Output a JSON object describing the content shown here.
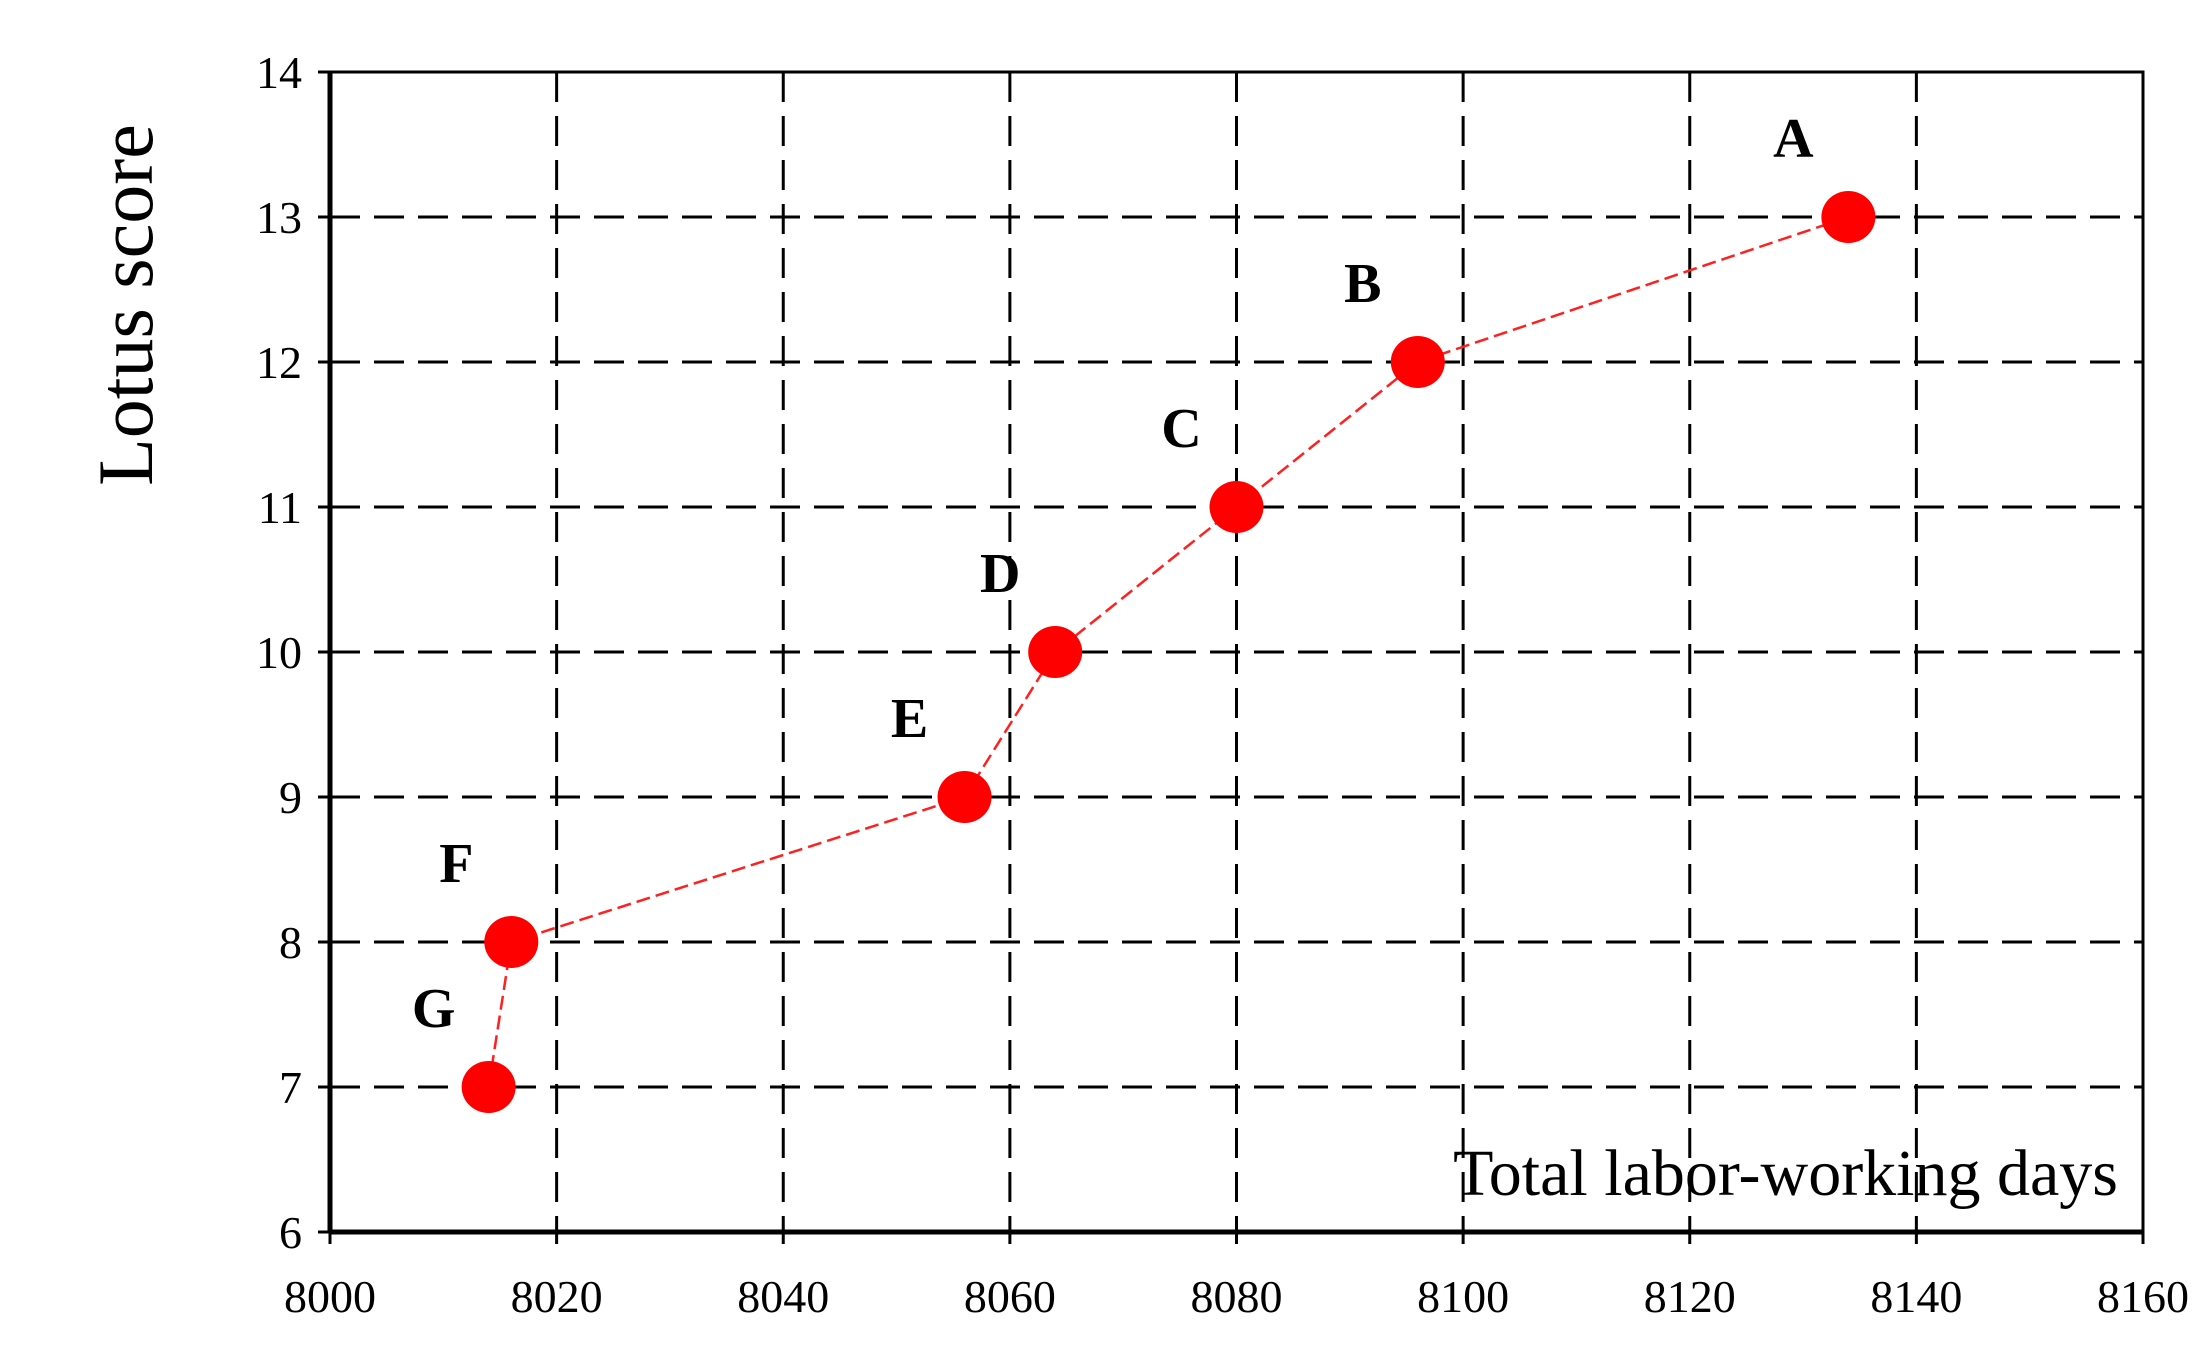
{
  "chart_data": {
    "type": "scatter",
    "title": "",
    "xlabel": "Total labor-working days",
    "ylabel": "Lotus score",
    "xlim": [
      8000,
      8160
    ],
    "ylim": [
      6,
      14
    ],
    "xticks": [
      8000,
      8020,
      8040,
      8060,
      8080,
      8100,
      8120,
      8140,
      8160
    ],
    "yticks": [
      6,
      7,
      8,
      9,
      10,
      11,
      12,
      13,
      14
    ],
    "grid": true,
    "legend": "none",
    "connected": true,
    "marker_color": "#ff0000",
    "line_color": "#ff2020",
    "points": [
      {
        "label": "A",
        "x": 8134,
        "y": 13
      },
      {
        "label": "B",
        "x": 8096,
        "y": 12
      },
      {
        "label": "C",
        "x": 8080,
        "y": 11
      },
      {
        "label": "D",
        "x": 8064,
        "y": 10
      },
      {
        "label": "E",
        "x": 8056,
        "y": 9
      },
      {
        "label": "F",
        "x": 8016,
        "y": 8
      },
      {
        "label": "G",
        "x": 8014,
        "y": 7
      }
    ]
  }
}
